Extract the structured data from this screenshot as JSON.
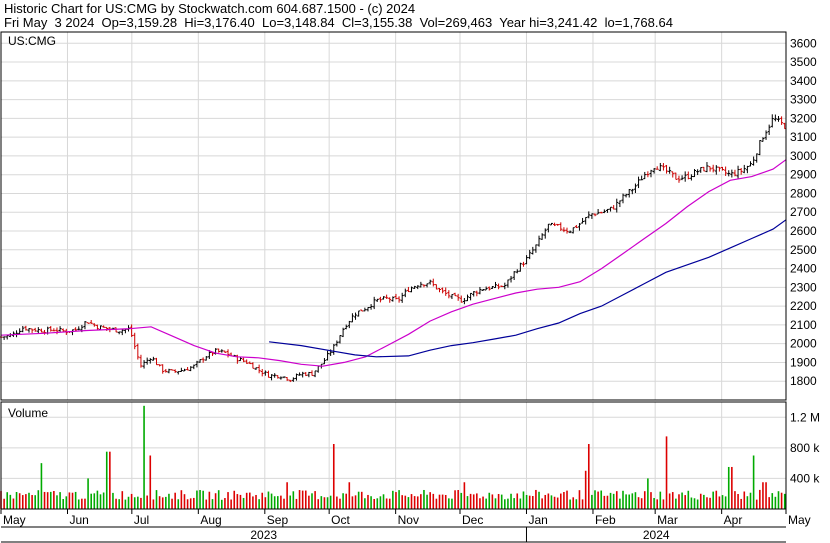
{
  "header": {
    "title": "Historic Chart for US:CMG by Stockwatch.com 604.687.1500 - (c) 2024",
    "quote": "Fri May  3 2024  Op=3,159.28  Hi=3,176.40  Lo=3,148.84  Cl=3,155.38  Vol=269,463  Year hi=3,241.42  lo=1,768.64"
  },
  "chart_data": {
    "type": "ohlc",
    "symbol": "US:CMG",
    "volume_label": "Volume",
    "price_ticks": [
      1800,
      1900,
      2000,
      2100,
      2200,
      2300,
      2400,
      2500,
      2600,
      2700,
      2800,
      2900,
      3000,
      3100,
      3200,
      3300,
      3400,
      3500,
      3600
    ],
    "price_ylim": [
      1700,
      3660
    ],
    "volume_ticks": [
      {
        "value": 400000,
        "label": "400 k"
      },
      {
        "value": 800000,
        "label": "800 k"
      },
      {
        "value": 1200000,
        "label": "1.2 M"
      }
    ],
    "volume_ylim": [
      0,
      1400000
    ],
    "months": [
      {
        "label": "May",
        "day": 0
      },
      {
        "label": "Jun",
        "day": 31
      },
      {
        "label": "Jul",
        "day": 61
      },
      {
        "label": "Aug",
        "day": 92
      },
      {
        "label": "Sep",
        "day": 123
      },
      {
        "label": "Oct",
        "day": 153
      },
      {
        "label": "Nov",
        "day": 184
      },
      {
        "label": "Dec",
        "day": 214
      },
      {
        "label": "Jan",
        "day": 245
      },
      {
        "label": "Feb",
        "day": 276
      },
      {
        "label": "Mar",
        "day": 305
      },
      {
        "label": "Apr",
        "day": 336
      },
      {
        "label": "May",
        "day": 366
      }
    ],
    "years": [
      {
        "label": "2023"
      },
      {
        "label": "2024"
      }
    ],
    "price_series": {
      "days": [
        0,
        5,
        10,
        15,
        20,
        25,
        30,
        35,
        40,
        45,
        50,
        55,
        60,
        65,
        70,
        75,
        80,
        85,
        90,
        95,
        100,
        105,
        110,
        115,
        120,
        125,
        130,
        135,
        140,
        145,
        150,
        155,
        160,
        165,
        170,
        175,
        180,
        185,
        190,
        195,
        200,
        205,
        210,
        215,
        220,
        225,
        230,
        235,
        240,
        245,
        250,
        255,
        260,
        265,
        270,
        275,
        280,
        285,
        290,
        295,
        300,
        305,
        310,
        315,
        320,
        325,
        330,
        335,
        340,
        345,
        350,
        355,
        360,
        366
      ],
      "values": [
        2035,
        2045,
        2085,
        2075,
        2070,
        2075,
        2065,
        2075,
        2120,
        2090,
        2080,
        2070,
        2080,
        1880,
        1930,
        1860,
        1850,
        1860,
        1880,
        1930,
        1960,
        1950,
        1920,
        1900,
        1860,
        1830,
        1830,
        1810,
        1840,
        1840,
        1900,
        1980,
        2090,
        2160,
        2190,
        2230,
        2240,
        2230,
        2290,
        2320,
        2325,
        2280,
        2250,
        2230,
        2270,
        2295,
        2300,
        2310,
        2390,
        2450,
        2530,
        2630,
        2620,
        2600,
        2640,
        2690,
        2700,
        2720,
        2780,
        2830,
        2900,
        2950,
        2920,
        2880,
        2890,
        2920,
        2940,
        2920,
        2900,
        2920,
        2960,
        3100,
        3200,
        3155
      ],
      "style": "black and red OHLC bars"
    },
    "series": [
      {
        "color": "#cc00cc",
        "days": [
          0,
          20,
          40,
          60,
          70,
          80,
          90,
          100,
          110,
          120,
          130,
          140,
          150,
          160,
          170,
          180,
          190,
          200,
          210,
          220,
          230,
          240,
          250,
          260,
          270,
          280,
          290,
          300,
          310,
          320,
          330,
          340,
          350,
          360,
          366
        ],
        "values": [
          2045,
          2055,
          2070,
          2080,
          2090,
          2040,
          1990,
          1950,
          1930,
          1925,
          1910,
          1890,
          1880,
          1900,
          1930,
          1990,
          2050,
          2120,
          2170,
          2210,
          2240,
          2270,
          2290,
          2300,
          2330,
          2400,
          2480,
          2560,
          2640,
          2730,
          2810,
          2870,
          2890,
          2930,
          2980
        ]
      },
      {
        "color": "#000099",
        "days": [
          125,
          140,
          155,
          165,
          175,
          190,
          200,
          210,
          220,
          230,
          240,
          250,
          260,
          270,
          280,
          290,
          300,
          310,
          320,
          330,
          340,
          350,
          360,
          366
        ],
        "values": [
          2010,
          1990,
          1960,
          1940,
          1930,
          1935,
          1965,
          1990,
          2005,
          2025,
          2045,
          2080,
          2110,
          2160,
          2200,
          2260,
          2320,
          2380,
          2420,
          2460,
          2510,
          2560,
          2610,
          2660
        ]
      }
    ],
    "volume_spikes": [
      {
        "day": 19,
        "value": 600000
      },
      {
        "day": 40,
        "value": 400000
      },
      {
        "day": 50,
        "value": 750000
      },
      {
        "day": 67,
        "value": 1350000
      },
      {
        "day": 69,
        "value": 700000
      },
      {
        "day": 133,
        "value": 350000
      },
      {
        "day": 155,
        "value": 850000
      },
      {
        "day": 163,
        "value": 350000
      },
      {
        "day": 216,
        "value": 350000
      },
      {
        "day": 272,
        "value": 500000
      },
      {
        "day": 274,
        "value": 850000
      },
      {
        "day": 302,
        "value": 400000
      },
      {
        "day": 310,
        "value": 950000
      },
      {
        "day": 340,
        "value": 550000
      },
      {
        "day": 351,
        "value": 700000
      },
      {
        "day": 356,
        "value": 350000
      }
    ]
  }
}
